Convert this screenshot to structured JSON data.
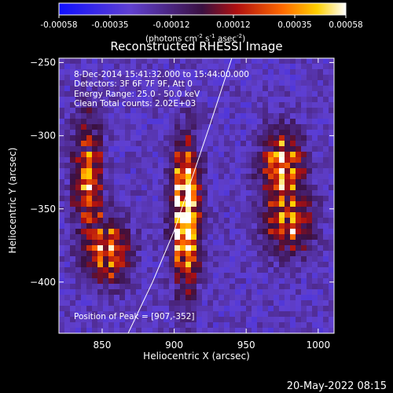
{
  "colorbar": {
    "tick_labels": [
      "-0.00058",
      "-0.00035",
      "-0.00012",
      "0.00012",
      "0.00035",
      "0.00058"
    ],
    "units_text": "(photons cm",
    "units_exp1": "-2",
    "units_mid": " s",
    "units_exp2": "-1",
    "units_mid2": " asec",
    "units_exp3": "-2",
    "units_close": ")",
    "range": [
      -0.00058,
      0.00058
    ]
  },
  "info": {
    "time_range": "8-Dec-2014 15:41:32.000 to 15:44:00.000",
    "detectors": "Detectors: 3F 6F 7F 9F, Att 0",
    "energy": "Energy Range: 25.0 - 50.0 keV",
    "clean": "Clean    Total counts: 2.02E+03",
    "peak": "Position of Peak = [907,-352]"
  },
  "footer": {
    "date": "20-May-2022 08:15"
  },
  "chart_data": {
    "type": "heatmap",
    "title": "Reconstructed RHESSI Image",
    "xlabel": "Heliocentric X (arcsec)",
    "ylabel": "Heliocentric Y (arcsec)",
    "xlim": [
      820,
      1011
    ],
    "ylim": [
      -435,
      -247
    ],
    "x_ticks": [
      850,
      900,
      950,
      1000
    ],
    "y_ticks": [
      -250,
      -300,
      -350,
      -400
    ],
    "x_tick_labels": [
      "850",
      "900",
      "950",
      "1000"
    ],
    "y_tick_labels": [
      "−250",
      "−300",
      "−350",
      "−400"
    ],
    "peak": [
      907,
      -352
    ],
    "limb_curve": [
      [
        868,
        -435
      ],
      [
        885,
        -400
      ],
      [
        900,
        -365
      ],
      [
        912,
        -330
      ],
      [
        924,
        -295
      ],
      [
        935,
        -262
      ],
      [
        940,
        -247
      ]
    ],
    "colormap": "blue-purple-red-orange-yellow-white",
    "bright_regions": [
      {
        "x": 908,
        "y": -355,
        "amp": 1.0,
        "sx": 9,
        "sy": 45
      },
      {
        "x": 975,
        "y": -320,
        "amp": 0.7,
        "sx": 14,
        "sy": 22
      },
      {
        "x": 980,
        "y": -360,
        "amp": 0.55,
        "sx": 16,
        "sy": 20
      },
      {
        "x": 840,
        "y": -330,
        "amp": 0.55,
        "sx": 10,
        "sy": 40
      },
      {
        "x": 855,
        "y": -380,
        "amp": 0.6,
        "sx": 14,
        "sy": 20
      }
    ]
  }
}
